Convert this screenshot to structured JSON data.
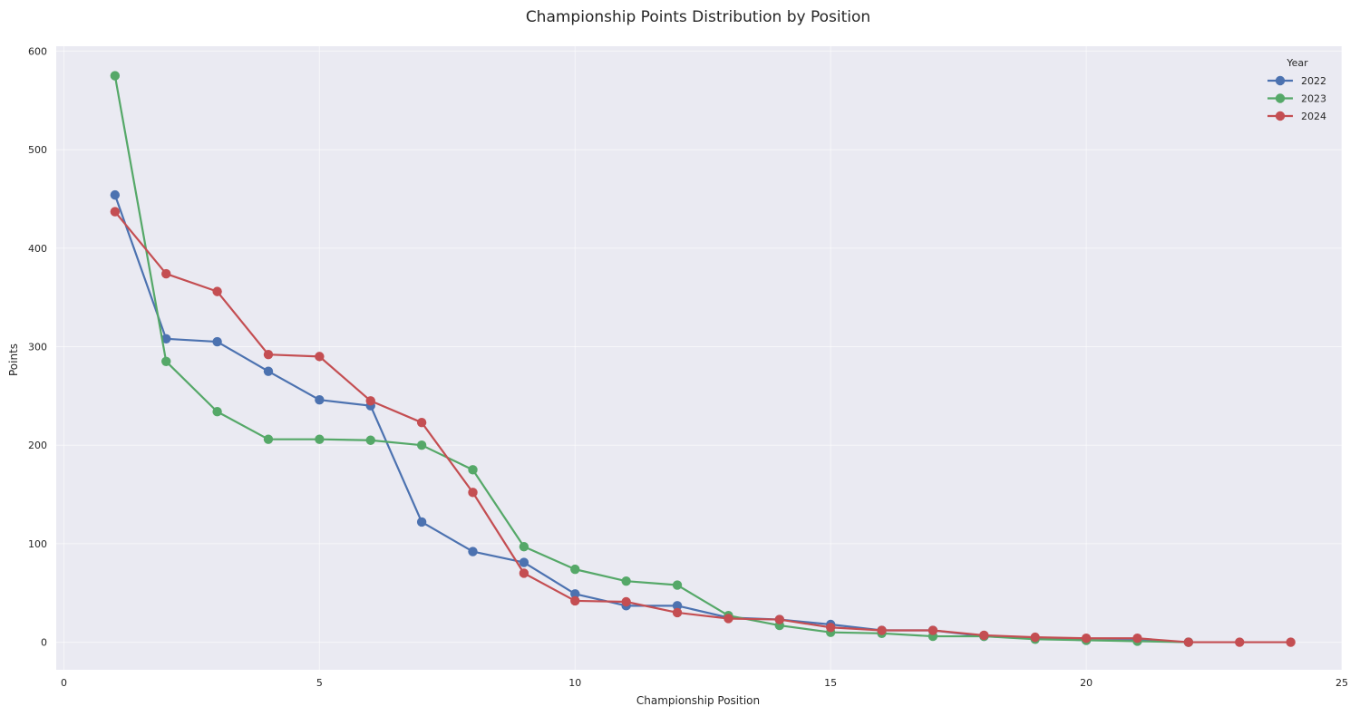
{
  "chart_data": {
    "type": "line",
    "title": "Championship Points Distribution by Position",
    "xlabel": "Championship Position",
    "ylabel": "Points",
    "xlim": [
      -0.15,
      25
    ],
    "ylim": [
      -28,
      605
    ],
    "xticks": [
      0,
      5,
      10,
      15,
      20,
      25
    ],
    "yticks": [
      0,
      100,
      200,
      300,
      400,
      500,
      600
    ],
    "grid": true,
    "legend": {
      "title": "Year",
      "placement": "top-right"
    },
    "series": [
      {
        "name": "2022",
        "color": "#4c72b0",
        "x": [
          1,
          2,
          3,
          4,
          5,
          6,
          7,
          8,
          9,
          10,
          11,
          12,
          13,
          14,
          15,
          16,
          17,
          18,
          19,
          20,
          21,
          22
        ],
        "values": [
          454,
          308,
          305,
          275,
          246,
          240,
          122,
          92,
          81,
          49,
          37,
          37,
          25,
          23,
          18,
          12,
          12,
          6,
          4,
          2,
          2,
          0
        ]
      },
      {
        "name": "2023",
        "color": "#55a868",
        "x": [
          1,
          2,
          3,
          4,
          5,
          6,
          7,
          8,
          9,
          10,
          11,
          12,
          13,
          14,
          15,
          16,
          17,
          18,
          19,
          20,
          21,
          22
        ],
        "values": [
          575,
          285,
          234,
          206,
          206,
          205,
          200,
          175,
          97,
          74,
          62,
          58,
          27,
          17,
          10,
          9,
          6,
          6,
          3,
          2,
          1,
          0
        ]
      },
      {
        "name": "2024",
        "color": "#c44e52",
        "x": [
          1,
          2,
          3,
          4,
          5,
          6,
          7,
          8,
          9,
          10,
          11,
          12,
          13,
          14,
          15,
          16,
          17,
          18,
          19,
          20,
          21,
          22,
          23,
          24
        ],
        "values": [
          437,
          374,
          356,
          292,
          290,
          245,
          223,
          152,
          70,
          42,
          41,
          30,
          24,
          23,
          15,
          12,
          12,
          7,
          5,
          4,
          4,
          0,
          0,
          0
        ]
      }
    ]
  }
}
